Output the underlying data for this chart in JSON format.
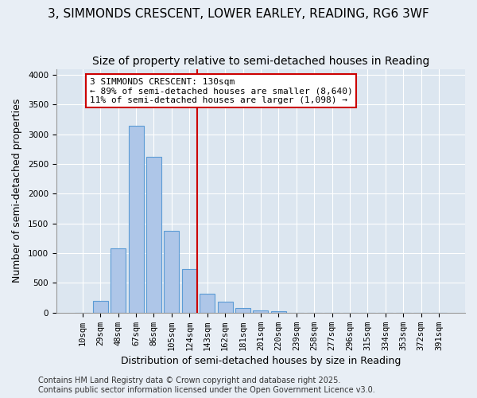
{
  "title": "3, SIMMONDS CRESCENT, LOWER EARLEY, READING, RG6 3WF",
  "subtitle": "Size of property relative to semi-detached houses in Reading",
  "xlabel": "Distribution of semi-detached houses by size in Reading",
  "ylabel": "Number of semi-detached properties",
  "bar_labels": [
    "10sqm",
    "29sqm",
    "48sqm",
    "67sqm",
    "86sqm",
    "105sqm",
    "124sqm",
    "143sqm",
    "162sqm",
    "181sqm",
    "201sqm",
    "220sqm",
    "239sqm",
    "258sqm",
    "277sqm",
    "296sqm",
    "315sqm",
    "334sqm",
    "353sqm",
    "372sqm",
    "391sqm"
  ],
  "bar_values": [
    0,
    200,
    1080,
    3150,
    2620,
    1370,
    730,
    315,
    185,
    80,
    40,
    20,
    0,
    0,
    0,
    0,
    0,
    0,
    0,
    0,
    0
  ],
  "bar_color": "#aec6e8",
  "bar_edge_color": "#5b9bd5",
  "property_line_color": "#cc0000",
  "property_line_x": 6.425,
  "annotation_text": "3 SIMMONDS CRESCENT: 130sqm\n← 89% of semi-detached houses are smaller (8,640)\n11% of semi-detached houses are larger (1,098) →",
  "annotation_box_color": "#cc0000",
  "ylim": [
    0,
    4100
  ],
  "yticks": [
    0,
    500,
    1000,
    1500,
    2000,
    2500,
    3000,
    3500,
    4000
  ],
  "background_color": "#e8eef5",
  "plot_background_color": "#dce6f0",
  "footer_line1": "Contains HM Land Registry data © Crown copyright and database right 2025.",
  "footer_line2": "Contains public sector information licensed under the Open Government Licence v3.0.",
  "title_fontsize": 11,
  "subtitle_fontsize": 10,
  "axis_label_fontsize": 9,
  "tick_fontsize": 7.5,
  "annotation_fontsize": 8,
  "footer_fontsize": 7
}
